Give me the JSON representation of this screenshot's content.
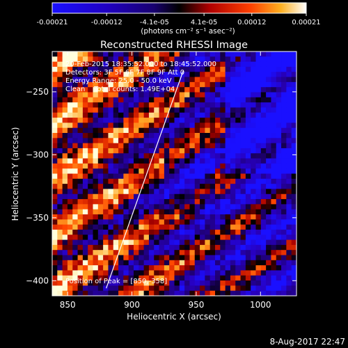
{
  "colorbar": {
    "tick_labels": [
      "-0.00021",
      "-0.00012",
      "-4.1e-05",
      "4.1e-05",
      "0.00012",
      "0.00021"
    ],
    "tick_values": [
      -0.00021,
      -0.00012,
      -4.1e-05,
      4.1e-05,
      0.00012,
      0.00021
    ],
    "range": [
      -0.00021,
      0.00021
    ],
    "units": "(photons cm⁻² s⁻¹ asec⁻²)"
  },
  "chart_data": {
    "type": "heatmap",
    "title": "Reconstructed RHESSI Image",
    "xlabel": "Heliocentric X (arcsec)",
    "ylabel": "Heliocentric Y (arcsec)",
    "xlim": [
      838,
      1028
    ],
    "ylim": [
      -412,
      -218
    ],
    "x_ticks": [
      850,
      900,
      950,
      1000
    ],
    "y_ticks": [
      -250,
      -300,
      -350,
      -400
    ],
    "x_tick_labels": [
      "850",
      "900",
      "950",
      "1000"
    ],
    "y_tick_labels": [
      "−250",
      "−300",
      "−350",
      "−400"
    ],
    "info_lines": [
      "20-Feb-2015 18:35:52.000 to 18:45:52.000",
      "Detectors: 3F 5F 6F 7F 8F 9F  Att 0",
      "Energy Range: 25.0 - 50.0 keV",
      "Clean    Total counts: 1.49E+04"
    ],
    "peak_label": "Position of Peak = [850,-358]",
    "limb_line": {
      "x": [
        880,
        940
      ],
      "y": [
        -406,
        -233
      ]
    },
    "colors": {
      "background": "#000000",
      "text": "#ffffff",
      "limb": "#ffffff"
    }
  },
  "footer": {
    "date": "8-Aug-2017 22:47"
  }
}
